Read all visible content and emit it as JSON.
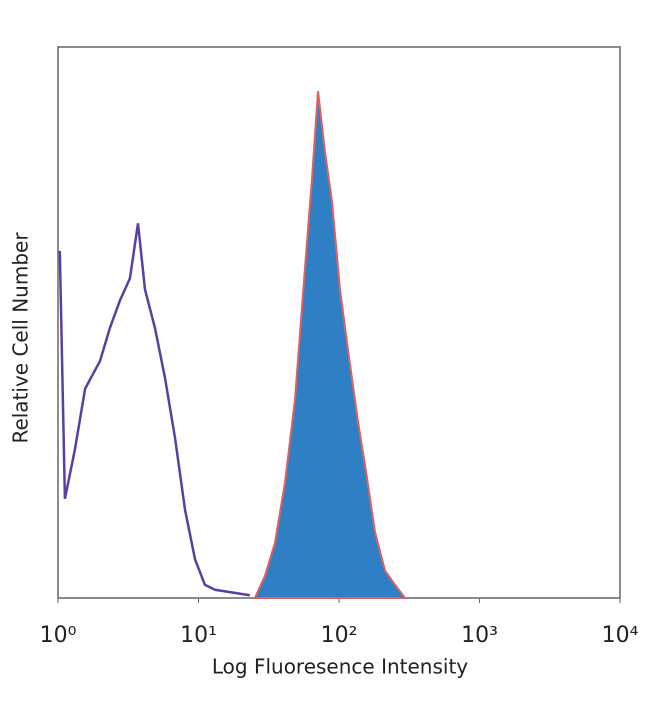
{
  "chart_data": {
    "type": "histogram-overlay",
    "xlabel": "Log Fluoresence Intensity",
    "ylabel": "Relative Cell Number",
    "xscale": "log",
    "xlim": [
      1,
      10000
    ],
    "ylim": [
      0,
      100
    ],
    "xticks": [
      {
        "value": 1,
        "label": "10⁰"
      },
      {
        "value": 10,
        "label": "10¹"
      },
      {
        "value": 100,
        "label": "10²"
      },
      {
        "value": 1000,
        "label": "10³"
      },
      {
        "value": 10000,
        "label": "10⁴"
      }
    ],
    "series": [
      {
        "color": "#5a3fa3",
        "fill": "none",
        "x": [
          1.03,
          1.12,
          1.32,
          1.56,
          1.99,
          2.34,
          2.76,
          3.25,
          3.71,
          4.16,
          4.9,
          5.77,
          6.81,
          8.02,
          9.45,
          11.1,
          13.1,
          23.2
        ],
        "values": [
          63,
          18,
          27,
          38,
          43,
          49,
          54,
          58,
          68,
          56,
          49,
          40,
          29,
          16,
          7,
          2.4,
          1.5,
          0.5
        ]
      },
      {
        "color": "#e06060",
        "fill": "#2f7fc4",
        "x": [
          25.2,
          29.7,
          35,
          41.3,
          48.6,
          57.3,
          64.2,
          70.9,
          79.4,
          89.1,
          101.6,
          115.9,
          136.5,
          155.6,
          180.3,
          212.4,
          250.4,
          295
        ],
        "values": [
          0,
          4,
          10,
          21,
          36,
          60,
          76,
          92,
          81,
          72,
          56,
          45,
          32,
          23,
          12,
          5,
          2.4,
          0
        ]
      }
    ]
  }
}
